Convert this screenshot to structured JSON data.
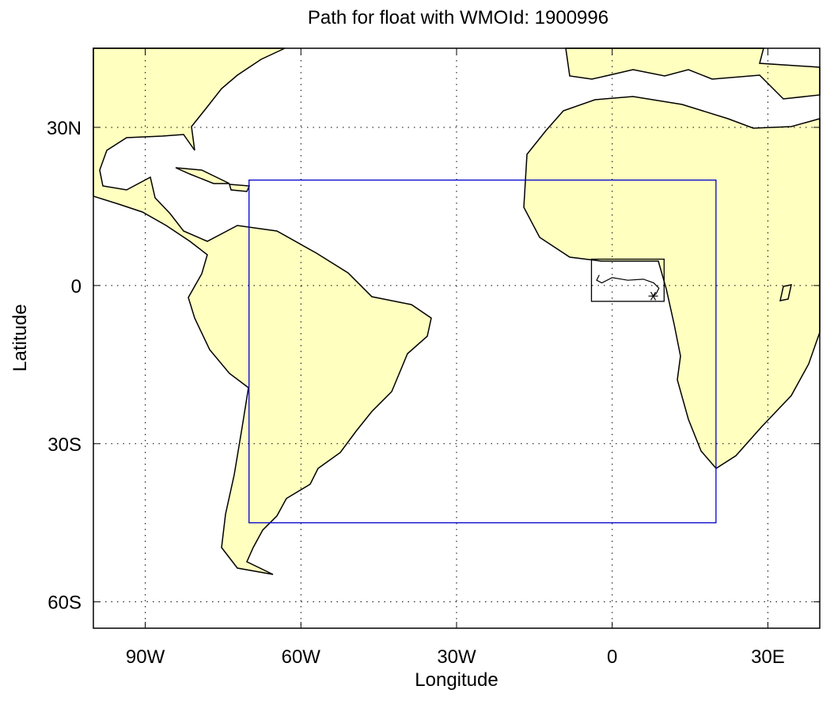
{
  "map": {
    "title": "Path for float with WMOId: 1900996",
    "x_label": "Longitude",
    "y_label": "Latitude",
    "xlim": [
      -100,
      40
    ],
    "ylim": [
      -65,
      45
    ],
    "xticks": [
      {
        "value": -90,
        "label": "90W"
      },
      {
        "value": -60,
        "label": "60W"
      },
      {
        "value": -30,
        "label": "30W"
      },
      {
        "value": 0,
        "label": "0"
      },
      {
        "value": 30,
        "label": "30E"
      }
    ],
    "yticks": [
      {
        "value": 30,
        "label": "30N"
      },
      {
        "value": 0,
        "label": "0"
      },
      {
        "value": -30,
        "label": "30S"
      },
      {
        "value": -60,
        "label": "60S"
      }
    ],
    "grid": true,
    "land_color": "#ffffc0",
    "regions": [
      {
        "color": "#0000cc",
        "lon": [
          -70,
          20
        ],
        "lat": [
          -45,
          20
        ]
      },
      {
        "color": "#000000",
        "lon": [
          -4,
          10
        ],
        "lat": [
          -3,
          5
        ]
      }
    ],
    "float_path": {
      "color": "#000000",
      "lon": [
        -2.5,
        -3,
        -2,
        0,
        3,
        6,
        8,
        9,
        8.5,
        7.9
      ],
      "lat": [
        2,
        1,
        0.5,
        1.5,
        1,
        1.2,
        0.5,
        -0.5,
        -1.5,
        -2
      ]
    }
  }
}
